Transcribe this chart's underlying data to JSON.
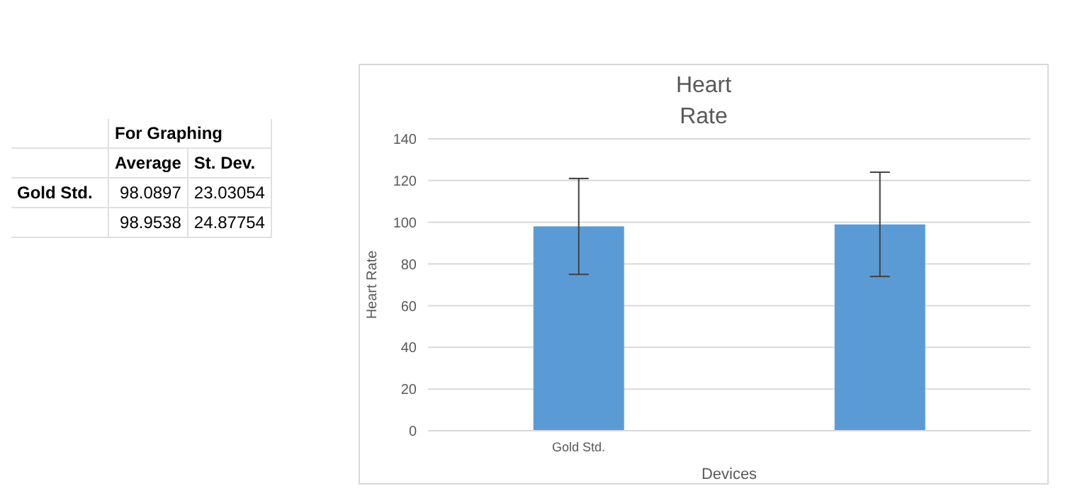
{
  "chart_data": [
    {
      "type": "other",
      "annotations": [
        "For Graphing",
        "Average",
        "St. Dev.",
        "Gold Std.",
        "98.0897",
        "23.03054",
        "98.9538",
        "24.87754"
      ]
    },
    {
      "type": "bar",
      "title": "Heart Rate",
      "xlabel": "Devices",
      "ylabel": "Heart Rate",
      "categories": [
        "Gold Std.",
        null
      ],
      "values": [
        98,
        99
      ],
      "errors": [
        23,
        25
      ],
      "color": "#5b9bd5",
      "ylim": [
        0,
        140
      ],
      "yticks": [
        0,
        20,
        40,
        60,
        80,
        100,
        120,
        140
      ],
      "grid": "y",
      "legend": false
    }
  ]
}
